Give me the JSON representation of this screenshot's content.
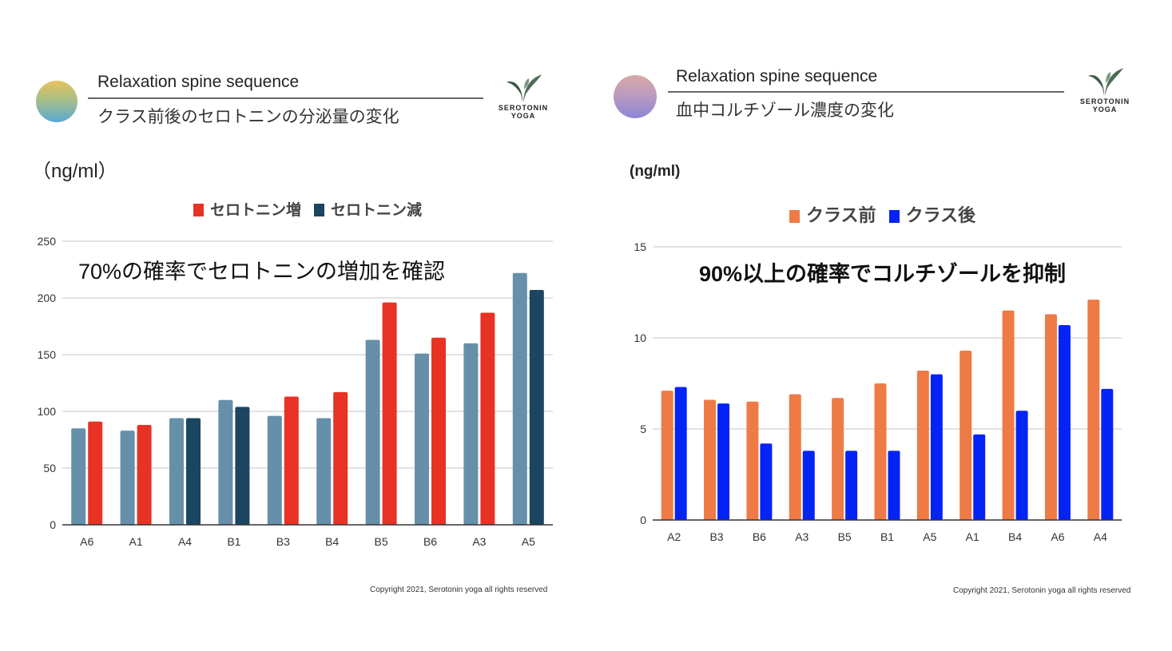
{
  "panels": [
    {
      "title": "Relaxation spine sequence",
      "subtitle": "クラス前後のセロトニンの分泌量の変化",
      "logo_text": [
        "SEROTONIN",
        "YOGA"
      ],
      "unit": "（ng/ml）",
      "annotation": "70%の確率でセロトニンの増加を確認",
      "copyright": "Copyright 2021, Serotonin yoga all rights reserved",
      "legend": [
        {
          "label": "セロトニン増",
          "color": "#e83224"
        },
        {
          "label": "セロトニン減",
          "color": "#1b4560"
        }
      ]
    },
    {
      "title": "Relaxation spine sequence",
      "subtitle": "血中コルチゾール濃度の変化",
      "logo_text": [
        "SEROTONIN",
        "YOGA"
      ],
      "unit": "(ng/ml)",
      "annotation": "90%以上の確率でコルチゾールを抑制",
      "copyright": "Copyright 2021, Serotonin yoga all rights reserved",
      "legend": [
        {
          "label": "クラス前",
          "color": "#ee7a46"
        },
        {
          "label": "クラス後",
          "color": "#0424f5"
        }
      ]
    }
  ],
  "chart_data": [
    {
      "type": "bar",
      "categories": [
        "A6",
        "A1",
        "A4",
        "B1",
        "B3",
        "B4",
        "B5",
        "B6",
        "A3",
        "A5"
      ],
      "series": [
        {
          "values": [
            85,
            83,
            94,
            110,
            96,
            94,
            163,
            151,
            160,
            222
          ],
          "color": "#6690aa"
        },
        {
          "values": [
            91,
            88,
            94,
            104,
            113,
            117,
            196,
            165,
            187,
            207
          ],
          "colors": [
            "#e83224",
            "#e83224",
            "#1b4560",
            "#1b4560",
            "#e83224",
            "#e83224",
            "#e83224",
            "#e83224",
            "#e83224",
            "#1b4560"
          ]
        }
      ],
      "yticks": [
        0,
        50,
        100,
        150,
        200,
        250
      ],
      "ylim": [
        0,
        250
      ],
      "grid": true,
      "legend_position": "top"
    },
    {
      "type": "bar",
      "categories": [
        "A2",
        "B3",
        "B6",
        "A3",
        "B5",
        "B1",
        "A5",
        "A1",
        "B4",
        "A6",
        "A4"
      ],
      "series": [
        {
          "name": "クラス前",
          "values": [
            7.1,
            6.6,
            6.5,
            6.9,
            6.7,
            7.5,
            8.2,
            9.3,
            11.5,
            11.3,
            12.1
          ],
          "color": "#ee7a46"
        },
        {
          "name": "クラス後",
          "values": [
            7.3,
            6.4,
            4.2,
            3.8,
            3.8,
            3.8,
            8.0,
            4.7,
            6.0,
            10.7,
            7.2
          ],
          "color": "#0424f5"
        }
      ],
      "yticks": [
        0,
        5,
        10,
        15
      ],
      "ylim": [
        0,
        15
      ],
      "grid": true,
      "legend_position": "top"
    }
  ]
}
